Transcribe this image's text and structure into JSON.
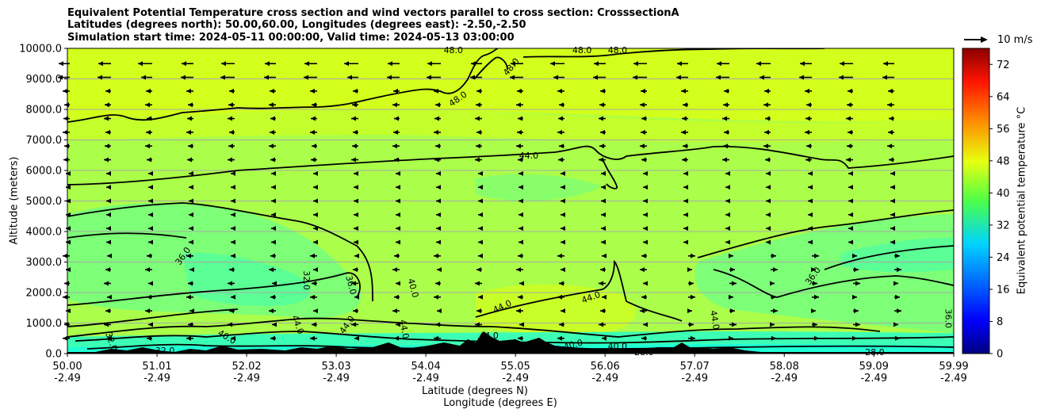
{
  "titles": {
    "line1": "Equivalent Potential Temperature cross section and wind vectors parallel to cross section: CrosssectionA",
    "line2": "Latitudes (degrees north): 50.00,60.00, Longitudes (degrees east): -2.50,-2.50",
    "line3": "Simulation start time: 2024-05-11 00:00:00, Valid time: 2024-05-13 03:00:00"
  },
  "chart_data": {
    "type": "heatmap",
    "ylabel": "Altitude (meters)",
    "xlabel_lat": "Latitude (degrees N)",
    "xlabel_lon": "Longitude (degrees E)",
    "ylim": [
      0,
      10000
    ],
    "yticks": [
      "0.0",
      "1000.0",
      "2000.0",
      "3000.0",
      "4000.0",
      "5000.0",
      "6000.0",
      "7000.0",
      "8000.0",
      "9000.0",
      "10000.0"
    ],
    "xticks_lat": [
      "50.00",
      "51.01",
      "52.02",
      "53.03",
      "54.04",
      "55.05",
      "56.06",
      "57.07",
      "58.08",
      "59.09",
      "59.99"
    ],
    "xticks_lon": [
      "-2.49",
      "-2.49",
      "-2.49",
      "-2.49",
      "-2.49",
      "-2.49",
      "-2.49",
      "-2.49",
      "-2.49",
      "-2.49",
      "-2.49"
    ],
    "xlim": [
      50.0,
      59.99
    ],
    "grid": "horizontal",
    "colorbar": {
      "label": "Equivalent potential temperature $^\\circ$C",
      "range": [
        0,
        76
      ],
      "ticks": [
        "0",
        "8",
        "16",
        "24",
        "32",
        "40",
        "48",
        "56",
        "64",
        "72"
      ],
      "colormap": "jet"
    },
    "wind_key": {
      "label": "10 m/s",
      "magnitude": 10
    },
    "contour_labels": [
      {
        "text": "48.0",
        "lat": 54.35,
        "alt": 9950,
        "rot": 0
      },
      {
        "text": "48.0",
        "lat": 55.8,
        "alt": 9950,
        "rot": 0
      },
      {
        "text": "48.0",
        "lat": 56.2,
        "alt": 9950,
        "rot": 0
      },
      {
        "text": "48.0",
        "lat": 55.0,
        "alt": 9400,
        "rot": -50
      },
      {
        "text": "48.0",
        "lat": 54.4,
        "alt": 8350,
        "rot": -35
      },
      {
        "text": "44.0",
        "lat": 55.2,
        "alt": 6500,
        "rot": 0
      },
      {
        "text": "36.0",
        "lat": 51.3,
        "alt": 3200,
        "rot": -55
      },
      {
        "text": "32.0",
        "lat": 52.7,
        "alt": 2400,
        "rot": 90
      },
      {
        "text": "36.0",
        "lat": 53.2,
        "alt": 2250,
        "rot": 75
      },
      {
        "text": "40.0",
        "lat": 53.9,
        "alt": 2150,
        "rot": 75
      },
      {
        "text": "44.0",
        "lat": 54.9,
        "alt": 1550,
        "rot": -25
      },
      {
        "text": "44.0",
        "lat": 55.9,
        "alt": 1850,
        "rot": -20
      },
      {
        "text": "36.0",
        "lat": 58.4,
        "alt": 2550,
        "rot": -55
      },
      {
        "text": "36.0",
        "lat": 59.93,
        "alt": 1150,
        "rot": 90
      },
      {
        "text": "44.0",
        "lat": 52.6,
        "alt": 950,
        "rot": 70
      },
      {
        "text": "44.0",
        "lat": 53.15,
        "alt": 950,
        "rot": -55
      },
      {
        "text": "44.0",
        "lat": 53.8,
        "alt": 800,
        "rot": 80
      },
      {
        "text": "40.0",
        "lat": 51.8,
        "alt": 550,
        "rot": 30
      },
      {
        "text": "40.0",
        "lat": 56.2,
        "alt": 250,
        "rot": 0
      },
      {
        "text": "44.0",
        "lat": 54.75,
        "alt": 600,
        "rot": 0
      },
      {
        "text": "28.0",
        "lat": 56.5,
        "alt": 50,
        "rot": 0
      },
      {
        "text": "28.0",
        "lat": 59.1,
        "alt": 50,
        "rot": 0
      },
      {
        "text": "32.0",
        "lat": 50.5,
        "alt": 400,
        "rot": 70
      },
      {
        "text": "32.0",
        "lat": 51.1,
        "alt": 100,
        "rot": 0
      },
      {
        "text": "40.0",
        "lat": 55.7,
        "alt": 300,
        "rot": -15
      },
      {
        "text": "44.0",
        "lat": 57.3,
        "alt": 1100,
        "rot": 80
      }
    ]
  }
}
